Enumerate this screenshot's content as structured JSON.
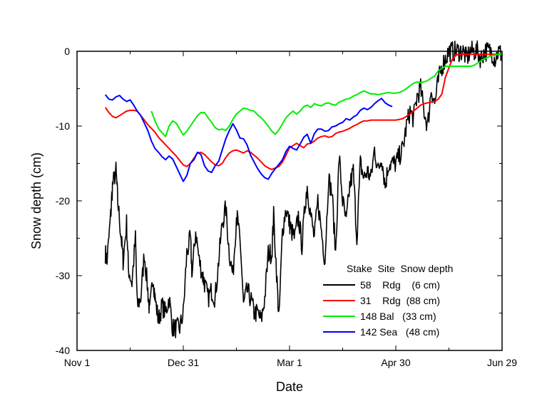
{
  "chart_data": {
    "type": "line",
    "title": "",
    "xlabel": "Date",
    "ylabel": "Snow depth (cm)",
    "x_unit": "days since Nov 1",
    "xlim": [
      0,
      240
    ],
    "ylim": [
      -40,
      0
    ],
    "x_ticks": [
      {
        "value": 0,
        "label": "Nov 1"
      },
      {
        "value": 60,
        "label": "Dec 31"
      },
      {
        "value": 120,
        "label": "Mar 1"
      },
      {
        "value": 180,
        "label": "Apr 30"
      },
      {
        "value": 240,
        "label": "Jun 29"
      }
    ],
    "y_ticks": [
      {
        "value": 0,
        "label": "0"
      },
      {
        "value": -10,
        "label": "-10"
      },
      {
        "value": -20,
        "label": "-20"
      },
      {
        "value": -30,
        "label": "-30"
      },
      {
        "value": -40,
        "label": "-40"
      }
    ],
    "legend": {
      "position": "lower-right",
      "header": "Stake  Site  Snow depth",
      "entries": [
        {
          "label": "58    Rdg    (6 cm)",
          "series": 0
        },
        {
          "label": "31    Rdg  (88 cm)",
          "series": 1
        },
        {
          "label": "148 Bal   (33 cm)",
          "series": 2
        },
        {
          "label": "142 Sea   (48 cm)",
          "series": 3
        }
      ]
    },
    "series": [
      {
        "name": "58 Rdg (6 cm)",
        "color": "#000000",
        "noise": 1.4,
        "x": [
          16,
          17,
          19,
          20,
          22,
          23,
          25,
          26,
          28,
          29,
          31,
          33,
          34,
          36,
          38,
          40,
          41,
          43,
          44,
          46,
          48,
          50,
          52,
          54,
          56,
          58,
          60,
          62,
          64,
          65,
          67,
          69,
          71,
          72,
          74,
          76,
          78,
          80,
          82,
          84,
          86,
          88,
          90,
          91,
          93,
          94,
          96,
          98,
          100,
          102,
          104,
          106,
          108,
          110,
          111,
          113,
          114,
          116,
          118,
          120,
          121,
          123,
          125,
          127,
          129,
          130,
          132,
          134,
          136,
          138,
          140,
          142,
          144,
          146,
          148,
          150,
          152,
          154,
          156,
          158,
          160,
          162,
          164,
          166,
          168,
          170,
          172,
          174,
          176,
          178,
          180,
          182,
          184,
          186,
          188,
          190,
          192,
          194,
          196,
          198,
          200,
          202,
          204,
          206,
          208,
          210,
          212,
          214,
          216,
          218,
          220,
          222,
          224,
          226,
          228,
          230,
          232,
          234,
          236,
          238,
          240
        ],
        "y": [
          -27,
          -28,
          -22,
          -18,
          -16,
          -20,
          -25,
          -28,
          -23,
          -29,
          -31,
          -25,
          -34,
          -33,
          -27,
          -32,
          -35,
          -30,
          -33,
          -36,
          -34,
          -35,
          -33,
          -37,
          -37,
          -37,
          -35,
          -27,
          -25,
          -30,
          -24,
          -28,
          -30,
          -31,
          -33,
          -32,
          -33,
          -28,
          -23,
          -21,
          -27,
          -30,
          -22,
          -23,
          -29,
          -34,
          -32,
          -33,
          -35,
          -35,
          -36,
          -33,
          -27,
          -27,
          -22,
          -31,
          -36,
          -24,
          -21,
          -23,
          -24,
          -25,
          -22,
          -26,
          -20,
          -18,
          -22,
          -25,
          -20,
          -24,
          -28,
          -17,
          -19,
          -27,
          -14,
          -20,
          -23,
          -18,
          -16,
          -25,
          -15,
          -17,
          -16,
          -17,
          -13,
          -16,
          -14,
          -18,
          -15,
          -15,
          -15,
          -14,
          -13,
          -10,
          -8,
          -9,
          -6,
          -5,
          -8,
          -10,
          -5,
          -7,
          -4,
          -2,
          -1,
          0,
          0,
          0,
          0,
          0,
          -1,
          0,
          0,
          0,
          -1,
          0,
          0,
          0,
          -1,
          0,
          -0.5
        ]
      },
      {
        "name": "31 Rdg (88 cm)",
        "color": "#ff0000",
        "noise": 0,
        "x": [
          16,
          18,
          20,
          22,
          24,
          26,
          28,
          30,
          32,
          34,
          36,
          38,
          40,
          42,
          44,
          46,
          48,
          50,
          52,
          54,
          56,
          58,
          60,
          62,
          64,
          66,
          68,
          70,
          72,
          74,
          76,
          78,
          80,
          82,
          84,
          86,
          88,
          90,
          92,
          94,
          96,
          98,
          100,
          102,
          104,
          106,
          108,
          110,
          112,
          114,
          116,
          118,
          120,
          122,
          124,
          126,
          128,
          130,
          132,
          134,
          136,
          138,
          140,
          142,
          144,
          146,
          148,
          150,
          152,
          154,
          156,
          158,
          160,
          162,
          164,
          166,
          168,
          170,
          172,
          174,
          176,
          178,
          180,
          182,
          184,
          186,
          188,
          190,
          192,
          194,
          196,
          198,
          200,
          202,
          204,
          206,
          208,
          210,
          212,
          214,
          216,
          218,
          220,
          222,
          224,
          226,
          228,
          230,
          232,
          234,
          236,
          238,
          240
        ],
        "y": [
          -7.5,
          -8.2,
          -8.7,
          -8.9,
          -8.6,
          -8.3,
          -8.0,
          -7.9,
          -7.9,
          -8.0,
          -8.6,
          -9.2,
          -9.8,
          -10.3,
          -10.8,
          -11.5,
          -12.0,
          -12.5,
          -13.0,
          -13.5,
          -14.0,
          -14.6,
          -15.2,
          -15.4,
          -15.0,
          -14.3,
          -13.6,
          -13.5,
          -13.8,
          -14.3,
          -14.8,
          -15.2,
          -15.3,
          -15.0,
          -14.2,
          -13.6,
          -13.3,
          -13.2,
          -13.4,
          -13.6,
          -13.3,
          -13.5,
          -13.9,
          -14.3,
          -14.8,
          -15.3,
          -15.6,
          -15.8,
          -15.6,
          -15.4,
          -14.8,
          -13.9,
          -12.9,
          -12.6,
          -12.3,
          -12.6,
          -12.9,
          -12.4,
          -12.3,
          -12.0,
          -11.6,
          -11.4,
          -11.3,
          -11.5,
          -11.4,
          -11.0,
          -10.8,
          -10.7,
          -10.5,
          -10.3,
          -10.0,
          -9.8,
          -9.5,
          -9.3,
          -9.3,
          -9.2,
          -9.2,
          -9.2,
          -9.2,
          -9.2,
          -9.2,
          -9.2,
          -9.2,
          -9.1,
          -9.0,
          -8.7,
          -8.4,
          -8.0,
          -7.6,
          -7.2,
          -7.0,
          -6.9,
          -6.8,
          -6.7,
          -6.4,
          -5.7,
          -3.5,
          -2.2,
          -1.0,
          -0.5,
          -0.4,
          -0.4,
          -0.4,
          -0.4,
          -0.4,
          -0.4,
          -0.4,
          -0.4,
          -0.4,
          -0.4,
          -0.4,
          -0.4,
          -0.4
        ]
      },
      {
        "name": "148 Bal (33 cm)",
        "color": "#00ee00",
        "noise": 0,
        "x": [
          42,
          44,
          46,
          48,
          50,
          52,
          54,
          56,
          58,
          60,
          62,
          64,
          66,
          68,
          70,
          72,
          74,
          76,
          78,
          80,
          82,
          84,
          86,
          88,
          90,
          92,
          94,
          96,
          98,
          100,
          102,
          104,
          106,
          108,
          110,
          112,
          114,
          116,
          118,
          120,
          122,
          124,
          126,
          128,
          130,
          132,
          134,
          136,
          138,
          140,
          142,
          144,
          146,
          148,
          150,
          152,
          154,
          156,
          158,
          160,
          162,
          164,
          166,
          168,
          170,
          172,
          174,
          176,
          178,
          180,
          182,
          184,
          186,
          188,
          190,
          192,
          194,
          196,
          198,
          200,
          202,
          204,
          206,
          208,
          210,
          212,
          214,
          216,
          218,
          220,
          222,
          224,
          226,
          228,
          230,
          232,
          234,
          236,
          238,
          240
        ],
        "y": [
          -8.0,
          -9.3,
          -10.3,
          -10.9,
          -11.4,
          -10.0,
          -9.3,
          -9.6,
          -10.4,
          -11.2,
          -10.7,
          -10.0,
          -9.3,
          -8.6,
          -8.2,
          -8.2,
          -8.9,
          -9.5,
          -10.2,
          -10.5,
          -10.4,
          -10.6,
          -10.0,
          -9.1,
          -8.4,
          -8.0,
          -7.6,
          -7.7,
          -7.9,
          -8.0,
          -8.5,
          -8.9,
          -9.4,
          -10.0,
          -10.7,
          -11.1,
          -10.5,
          -9.7,
          -8.9,
          -8.4,
          -8.0,
          -8.4,
          -8.0,
          -7.4,
          -7.2,
          -7.5,
          -7.0,
          -7.2,
          -7.3,
          -7.0,
          -6.9,
          -7.1,
          -7.2,
          -6.8,
          -6.6,
          -6.4,
          -6.3,
          -6.0,
          -5.8,
          -5.5,
          -5.3,
          -5.5,
          -5.7,
          -5.7,
          -5.8,
          -5.7,
          -5.6,
          -5.5,
          -5.6,
          -5.6,
          -5.5,
          -5.3,
          -5.0,
          -4.6,
          -4.3,
          -4.1,
          -4.2,
          -4.1,
          -3.9,
          -3.6,
          -3.3,
          -2.6,
          -2.3,
          -2.0,
          -2.0,
          -2.0,
          -2.0,
          -2.0,
          -2.0,
          -2.0,
          -2.0,
          -1.9,
          -1.6,
          -1.3,
          -1.0,
          -0.8,
          -0.6,
          -0.5,
          -0.4,
          -0.4
        ]
      },
      {
        "name": "142 Sea (48 cm)",
        "color": "#0000ff",
        "noise": 0,
        "x": [
          16,
          18,
          20,
          22,
          24,
          26,
          28,
          30,
          32,
          34,
          36,
          38,
          40,
          42,
          44,
          46,
          48,
          50,
          52,
          54,
          56,
          58,
          60,
          62,
          64,
          66,
          68,
          70,
          72,
          74,
          76,
          78,
          80,
          82,
          84,
          86,
          88,
          90,
          92,
          94,
          96,
          98,
          100,
          102,
          104,
          106,
          108,
          110,
          112,
          114,
          116,
          118,
          120,
          122,
          124,
          126,
          128,
          130,
          132,
          134,
          136,
          138,
          140,
          142,
          144,
          146,
          148,
          150,
          152,
          154,
          156,
          158,
          160,
          162,
          164,
          166,
          168,
          170,
          172,
          174,
          176,
          178
        ],
        "y": [
          -5.8,
          -6.4,
          -6.5,
          -6.1,
          -5.9,
          -6.4,
          -6.7,
          -6.5,
          -7.2,
          -8.0,
          -8.6,
          -9.6,
          -10.6,
          -12.0,
          -13.0,
          -13.5,
          -14.1,
          -14.5,
          -14.0,
          -14.4,
          -15.4,
          -16.4,
          -17.4,
          -16.6,
          -15.0,
          -14.5,
          -13.5,
          -13.8,
          -15.3,
          -16.0,
          -16.2,
          -15.3,
          -14.7,
          -13.2,
          -11.7,
          -10.6,
          -9.7,
          -10.5,
          -11.6,
          -11.7,
          -12.5,
          -13.9,
          -14.8,
          -15.7,
          -16.4,
          -16.9,
          -17.1,
          -16.3,
          -15.7,
          -15.1,
          -14.5,
          -13.4,
          -12.7,
          -13.0,
          -13.2,
          -12.4,
          -11.5,
          -11.1,
          -12.3,
          -11.0,
          -10.4,
          -10.4,
          -10.7,
          -10.6,
          -10.1,
          -10.0,
          -9.7,
          -9.5,
          -9.0,
          -9.2,
          -8.8,
          -8.5,
          -7.9,
          -7.6,
          -7.8,
          -7.5,
          -7.0,
          -6.6,
          -6.3,
          -6.9,
          -7.2,
          -7.4
        ]
      }
    ]
  }
}
